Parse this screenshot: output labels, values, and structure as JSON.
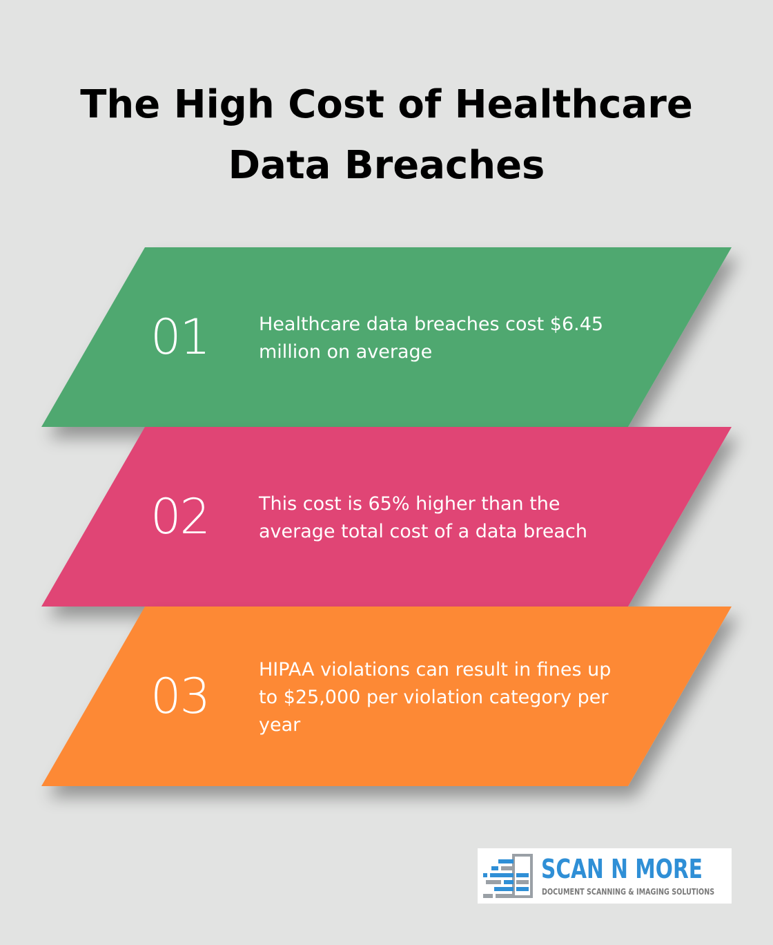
{
  "title": {
    "line1": "The High Cost of Healthcare",
    "line2": "Data Breaches"
  },
  "cards": [
    {
      "number": "01",
      "text": "Healthcare data breaches cost $6.45 million on average",
      "color": "#4fa86f"
    },
    {
      "number": "02",
      "text": "This cost is 65% higher than the average total cost of a data breach",
      "color": "#e04474"
    },
    {
      "number": "03",
      "text": "HIPAA violations can result in fines up to $25,000 per violation category per year",
      "color": "#fd8935"
    }
  ],
  "logo": {
    "name": "SCAN N MORE",
    "tagline": "DOCUMENT SCANNING & IMAGING SOLUTIONS",
    "icon": "scanner-document-icon",
    "color": "#2f8fd6"
  },
  "background": "#e2e3e2"
}
